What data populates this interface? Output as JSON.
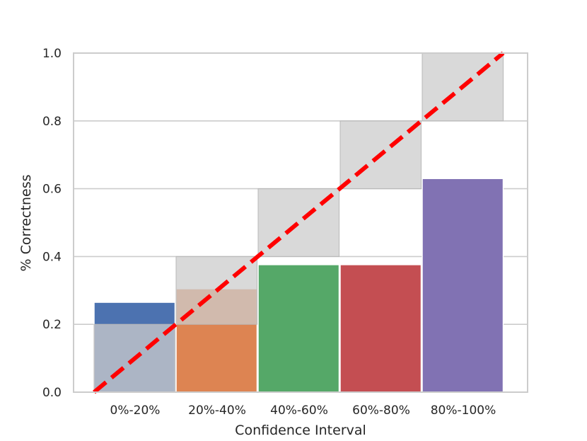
{
  "chart_data": {
    "type": "bar",
    "title": "",
    "xlabel": "Confidence Interval",
    "ylabel": "% Correctness",
    "categories": [
      "0%-20%",
      "20%-40%",
      "40%-60%",
      "60%-80%",
      "80%-100%"
    ],
    "values": [
      0.265,
      0.305,
      0.376,
      0.376,
      0.63
    ],
    "bar_colors": [
      "#4c72b0",
      "#dd8452",
      "#55a868",
      "#c44e52",
      "#8172b3"
    ],
    "gap_bands": [
      {
        "low": 0.0,
        "high": 0.2
      },
      {
        "low": 0.2,
        "high": 0.4
      },
      {
        "low": 0.4,
        "high": 0.6
      },
      {
        "low": 0.6,
        "high": 0.8
      },
      {
        "low": 0.8,
        "high": 1.0
      }
    ],
    "gap_color": "#cccccc",
    "diagonal": {
      "from": [
        0,
        0
      ],
      "to": [
        1,
        1
      ],
      "color": "#ff0000",
      "style": "dashed"
    },
    "ylim": [
      0,
      1
    ],
    "yticks": [
      "0.0",
      "0.2",
      "0.4",
      "0.6",
      "0.8",
      "1.0"
    ],
    "grid": true
  }
}
